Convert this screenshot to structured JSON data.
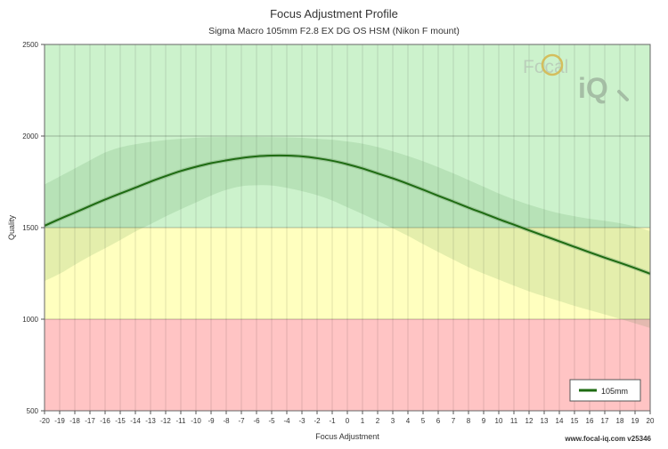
{
  "chart_data": {
    "type": "line",
    "title": "Focus Adjustment Profile",
    "subtitle": "Sigma Macro 105mm F2.8 EX DG OS HSM (Nikon F mount)",
    "xlabel": "Focus Adjustment",
    "ylabel": "Quality",
    "xlim": [
      -20,
      20
    ],
    "ylim": [
      500,
      2500
    ],
    "x_ticks": [
      -20,
      -19,
      -18,
      -17,
      -16,
      -15,
      -14,
      -13,
      -12,
      -11,
      -10,
      -9,
      -8,
      -7,
      -6,
      -5,
      -4,
      -3,
      -2,
      -1,
      0,
      1,
      2,
      3,
      4,
      5,
      6,
      7,
      8,
      9,
      10,
      11,
      12,
      13,
      14,
      15,
      16,
      17,
      18,
      19,
      20
    ],
    "y_ticks": [
      500,
      1000,
      1500,
      2000,
      2500
    ],
    "grid": true,
    "legend_position": "bottom-right",
    "zones": [
      {
        "name": "good",
        "from": 1500,
        "to": 2500,
        "color": "#ccf2cc"
      },
      {
        "name": "fair",
        "from": 1000,
        "to": 1500,
        "color": "#ffffbf"
      },
      {
        "name": "poor",
        "from": 500,
        "to": 1000,
        "color": "#ffc4c4"
      }
    ],
    "series": [
      {
        "name": "105mm",
        "color": "#1e6b12",
        "x": [
          -20,
          -19,
          -18,
          -17,
          -16,
          -15,
          -14,
          -13,
          -12,
          -11,
          -10,
          -9,
          -8,
          -7,
          -6,
          -5,
          -4,
          -3,
          -2,
          -1,
          0,
          1,
          2,
          3,
          4,
          5,
          6,
          7,
          8,
          9,
          10,
          11,
          12,
          13,
          14,
          15,
          16,
          17,
          18,
          19,
          20
        ],
        "values": [
          1510,
          1547,
          1582,
          1618,
          1653,
          1686,
          1718,
          1751,
          1781,
          1809,
          1832,
          1852,
          1867,
          1880,
          1889,
          1893,
          1893,
          1889,
          1879,
          1865,
          1846,
          1823,
          1796,
          1769,
          1739,
          1707,
          1674,
          1642,
          1609,
          1578,
          1546,
          1516,
          1485,
          1455,
          1425,
          1395,
          1365,
          1336,
          1308,
          1279,
          1248
        ],
        "band_upper": [
          1735,
          1779,
          1823,
          1867,
          1910,
          1938,
          1955,
          1968,
          1978,
          1985,
          1991,
          1994,
          1995,
          1996,
          1995,
          1994,
          1993,
          1990,
          1985,
          1980,
          1970,
          1958,
          1940,
          1916,
          1891,
          1862,
          1830,
          1796,
          1760,
          1723,
          1686,
          1654,
          1625,
          1600,
          1578,
          1562,
          1548,
          1537,
          1524,
          1506,
          1481
        ],
        "band_lower": [
          1208,
          1248,
          1297,
          1344,
          1387,
          1432,
          1479,
          1519,
          1561,
          1600,
          1637,
          1675,
          1706,
          1726,
          1731,
          1730,
          1717,
          1699,
          1677,
          1648,
          1611,
          1574,
          1536,
          1496,
          1455,
          1410,
          1367,
          1325,
          1284,
          1249,
          1216,
          1183,
          1152,
          1125,
          1099,
          1073,
          1049,
          1026,
          1002,
          977,
          952
        ]
      }
    ]
  },
  "branding": {
    "logo_text_top": "Focal",
    "logo_text_bottom": "iQ",
    "footer": "www.focal-iq.com  v25346"
  }
}
